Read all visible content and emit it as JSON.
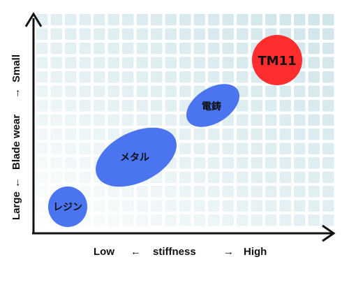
{
  "x_axis": {
    "low": "Low",
    "arrow_left": "←",
    "name": "stiffness",
    "arrow_right": "→",
    "high": "High"
  },
  "y_axis": {
    "low": "Large",
    "arrow_down": "←",
    "name": "Blade wear",
    "arrow_up": "→",
    "high": "Small"
  },
  "items": [
    {
      "label": "レジン",
      "color": "#4a74f0"
    },
    {
      "label": "メタル",
      "color": "#4a74f0"
    },
    {
      "label": "電鋳",
      "color": "#4a74f0"
    },
    {
      "label": "TM11",
      "color": "#ff2d2d"
    }
  ],
  "colors": {
    "grid_cell": "#cfe5ea",
    "axis": "#111111",
    "highlight": "#ff2d2d",
    "bubble": "#4a74f0"
  }
}
